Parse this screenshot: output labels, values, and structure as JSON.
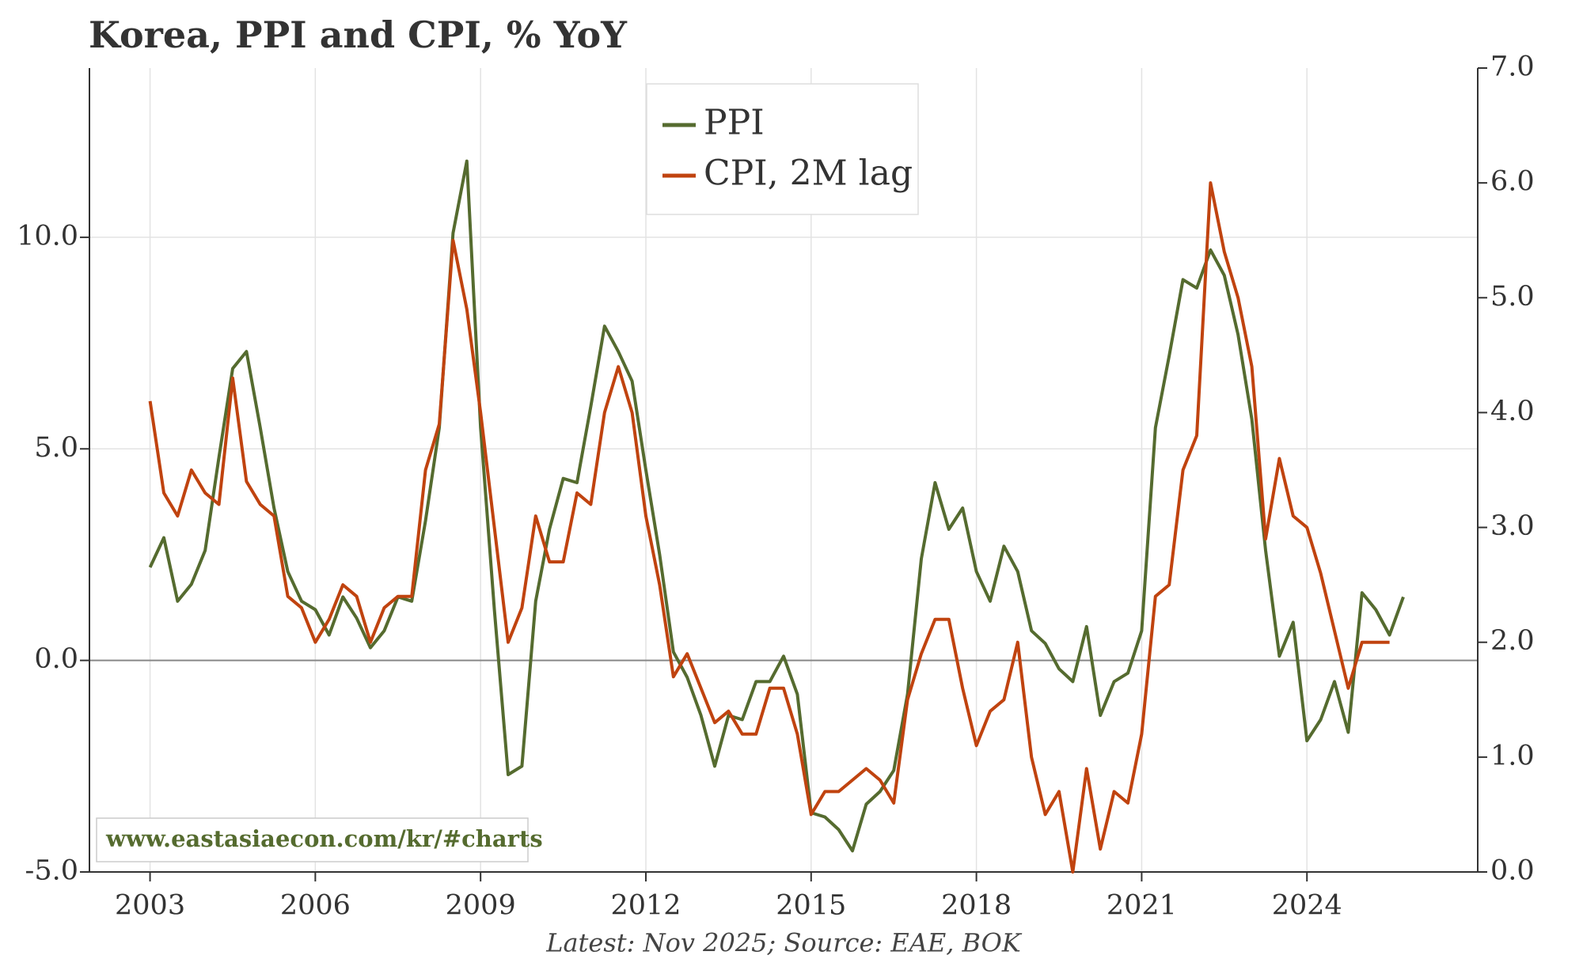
{
  "chart_data": {
    "type": "line",
    "title": "Korea, PPI and CPI, % YoY",
    "source": "Latest: Nov 2025; Source: EAE, BOK",
    "watermark": "www.eastasiaecon.com/kr/#charts",
    "x": [
      2003.0,
      2003.25,
      2003.5,
      2003.75,
      2004.0,
      2004.25,
      2004.5,
      2004.75,
      2005.0,
      2005.25,
      2005.5,
      2005.75,
      2006.0,
      2006.25,
      2006.5,
      2006.75,
      2007.0,
      2007.25,
      2007.5,
      2007.75,
      2008.0,
      2008.25,
      2008.5,
      2008.75,
      2009.0,
      2009.25,
      2009.5,
      2009.75,
      2010.0,
      2010.25,
      2010.5,
      2010.75,
      2011.0,
      2011.25,
      2011.5,
      2011.75,
      2012.0,
      2012.25,
      2012.5,
      2012.75,
      2013.0,
      2013.25,
      2013.5,
      2013.75,
      2014.0,
      2014.25,
      2014.5,
      2014.75,
      2015.0,
      2015.25,
      2015.5,
      2015.75,
      2016.0,
      2016.25,
      2016.5,
      2016.75,
      2017.0,
      2017.25,
      2017.5,
      2017.75,
      2018.0,
      2018.25,
      2018.5,
      2018.75,
      2019.0,
      2019.25,
      2019.5,
      2019.75,
      2020.0,
      2020.25,
      2020.5,
      2020.75,
      2021.0,
      2021.25,
      2021.5,
      2021.75,
      2022.0,
      2022.25,
      2022.5,
      2022.75,
      2023.0,
      2023.25,
      2023.5,
      2023.75,
      2024.0,
      2024.25,
      2024.5,
      2024.75,
      2025.0,
      2025.25,
      2025.5,
      2025.75
    ],
    "series": [
      {
        "name": "PPI",
        "color": "#556b2f",
        "values": [
          2.2,
          2.9,
          1.4,
          1.8,
          2.6,
          4.8,
          6.9,
          7.3,
          5.5,
          3.6,
          2.1,
          1.4,
          1.2,
          0.6,
          1.5,
          1.0,
          0.3,
          0.7,
          1.5,
          1.4,
          3.3,
          5.5,
          10.1,
          11.8,
          5.5,
          1.2,
          -2.7,
          -2.5,
          1.4,
          3.1,
          4.3,
          4.2,
          6.0,
          7.9,
          7.3,
          6.6,
          4.5,
          2.5,
          0.2,
          -0.4,
          -1.3,
          -2.5,
          -1.3,
          -1.4,
          -0.5,
          -0.5,
          0.1,
          -0.8,
          -3.6,
          -3.7,
          -4.0,
          -4.5,
          -3.4,
          -3.1,
          -2.6,
          -0.8,
          2.4,
          4.2,
          3.1,
          3.6,
          2.1,
          1.4,
          2.7,
          2.1,
          0.7,
          0.4,
          -0.2,
          -0.5,
          0.8,
          -1.3,
          -0.5,
          -0.3,
          0.7,
          5.5,
          7.2,
          9.0,
          8.8,
          9.7,
          9.1,
          7.7,
          5.7,
          2.6,
          0.1,
          0.9,
          -1.9,
          -1.4,
          -0.5,
          -1.7,
          1.6,
          1.2,
          0.6,
          1.5
        ]
      },
      {
        "name": "CPI, 2M lag",
        "color": "#c0430f",
        "axis": "y2",
        "values": [
          4.1,
          3.3,
          3.1,
          3.5,
          3.3,
          3.2,
          4.3,
          3.4,
          3.2,
          3.1,
          2.4,
          2.3,
          2.0,
          2.2,
          2.5,
          2.4,
          2.0,
          2.3,
          2.4,
          2.4,
          3.5,
          3.9,
          5.5,
          4.9,
          4.0,
          3.0,
          2.0,
          2.3,
          3.1,
          2.7,
          2.7,
          3.3,
          3.2,
          4.0,
          4.4,
          4.0,
          3.1,
          2.5,
          1.7,
          1.9,
          1.6,
          1.3,
          1.4,
          1.2,
          1.2,
          1.6,
          1.6,
          1.2,
          0.5,
          0.7,
          0.7,
          0.8,
          0.9,
          0.8,
          0.6,
          1.5,
          1.9,
          2.2,
          2.2,
          1.6,
          1.1,
          1.4,
          1.5,
          2.0,
          1.0,
          0.5,
          0.7,
          0.0,
          0.9,
          0.2,
          0.7,
          0.6,
          1.2,
          2.4,
          2.5,
          3.5,
          3.8,
          6.0,
          5.4,
          5.0,
          4.4,
          2.9,
          3.6,
          3.1,
          3.0,
          2.6,
          2.1,
          1.6,
          2.0,
          2.0,
          2.0,
          null
        ]
      }
    ],
    "xlim": [
      2001.9,
      2027.1
    ],
    "xticks": [
      2003,
      2006,
      2009,
      2012,
      2015,
      2018,
      2021,
      2024
    ],
    "ylim": [
      -5,
      14
    ],
    "yticks": [
      {
        "value": -5,
        "label": "-5.0"
      },
      {
        "value": 0,
        "label": "0.0"
      },
      {
        "value": 5,
        "label": "5.0"
      },
      {
        "value": 10,
        "label": "10.0"
      }
    ],
    "y2lim": [
      0,
      7
    ],
    "y2ticks": [
      {
        "value": 0,
        "label": "0.0"
      },
      {
        "value": 1,
        "label": "1.0"
      },
      {
        "value": 2,
        "label": "2.0"
      },
      {
        "value": 3,
        "label": "3.0"
      },
      {
        "value": 4,
        "label": "4.0"
      },
      {
        "value": 5,
        "label": "5.0"
      },
      {
        "value": 6,
        "label": "6.0"
      },
      {
        "value": 7,
        "label": "7.0"
      }
    ],
    "grid": true,
    "legend": "top-center"
  }
}
